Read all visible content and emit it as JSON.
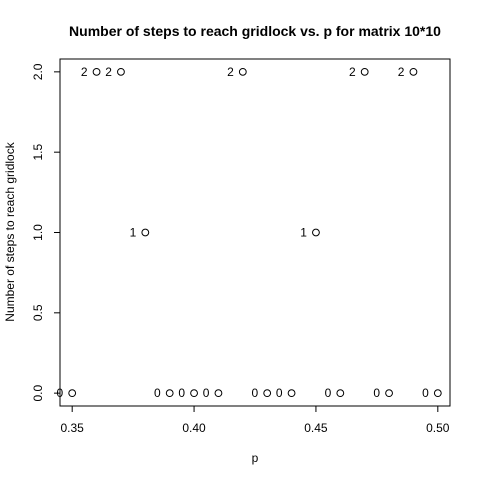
{
  "chart_data": {
    "type": "scatter",
    "title": "Number of steps to reach gridlock vs. p for matrix 10*10",
    "xlabel": "p",
    "ylabel": "Number of steps to reach gridlock",
    "xlim": [
      0.345,
      0.505
    ],
    "ylim": [
      -0.08,
      2.08
    ],
    "x_ticks": [
      "0.35",
      "0.40",
      "0.45",
      "0.50"
    ],
    "y_ticks": [
      "0.0",
      "0.5",
      "1.0",
      "1.5",
      "2.0"
    ],
    "grid": false,
    "legend": "none",
    "marker": "open-circle",
    "point_labels_shown": true,
    "points": [
      {
        "x": 0.35,
        "y": 0,
        "label": "0"
      },
      {
        "x": 0.36,
        "y": 2,
        "label": "2"
      },
      {
        "x": 0.37,
        "y": 2,
        "label": "2"
      },
      {
        "x": 0.38,
        "y": 1,
        "label": "1"
      },
      {
        "x": 0.39,
        "y": 0,
        "label": "0"
      },
      {
        "x": 0.4,
        "y": 0,
        "label": "0"
      },
      {
        "x": 0.41,
        "y": 0,
        "label": "0"
      },
      {
        "x": 0.42,
        "y": 2,
        "label": "2"
      },
      {
        "x": 0.43,
        "y": 0,
        "label": "0"
      },
      {
        "x": 0.44,
        "y": 0,
        "label": "0"
      },
      {
        "x": 0.45,
        "y": 1,
        "label": "1"
      },
      {
        "x": 0.46,
        "y": 0,
        "label": "0"
      },
      {
        "x": 0.47,
        "y": 2,
        "label": "2"
      },
      {
        "x": 0.48,
        "y": 0,
        "label": "0"
      },
      {
        "x": 0.49,
        "y": 2,
        "label": "2"
      },
      {
        "x": 0.5,
        "y": 0,
        "label": "0"
      }
    ]
  }
}
